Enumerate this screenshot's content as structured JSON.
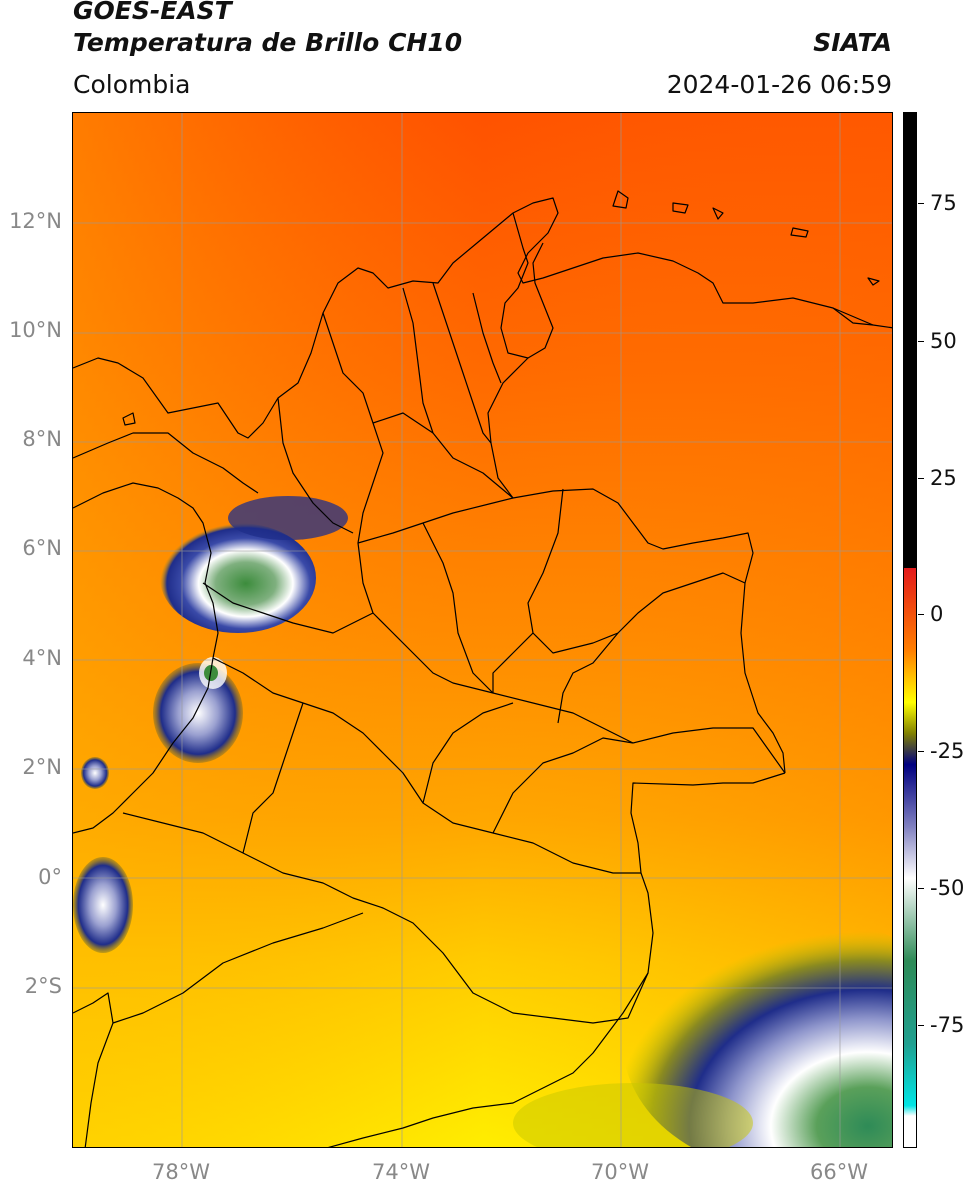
{
  "header": {
    "satellite": "GOES-EAST",
    "product": "Temperatura de Brillo CH10",
    "region": "Colombia",
    "source": "SIATA",
    "datetime": "2024-01-26 06:59"
  },
  "latitude_labels": [
    "12°N",
    "10°N",
    "8°N",
    "6°N",
    "4°N",
    "2°N",
    "0°",
    "2°S"
  ],
  "longitude_labels": [
    "78°W",
    "74°W",
    "70°W",
    "66°W"
  ],
  "colorbar": {
    "ticks": [
      "75",
      "50",
      "25",
      "0",
      "-25",
      "-50",
      "-75"
    ],
    "colors": {
      "black": "#000000",
      "red": "#e31a1c",
      "orange": "#ff7f00",
      "yellow": "#ffff00",
      "olive": "#808000",
      "navy": "#000080",
      "white": "#ffffff",
      "green": "#2e8b57",
      "cyan": "#00e5e5"
    }
  },
  "map": {
    "background_colors": {
      "north": "#ff5a00",
      "center": "#ff8c00",
      "south": "#ffd000",
      "cloud_cold": "#1f2d8a",
      "cloud_mid": "#ffffff",
      "cloud_core": "#3c8c3c"
    }
  }
}
